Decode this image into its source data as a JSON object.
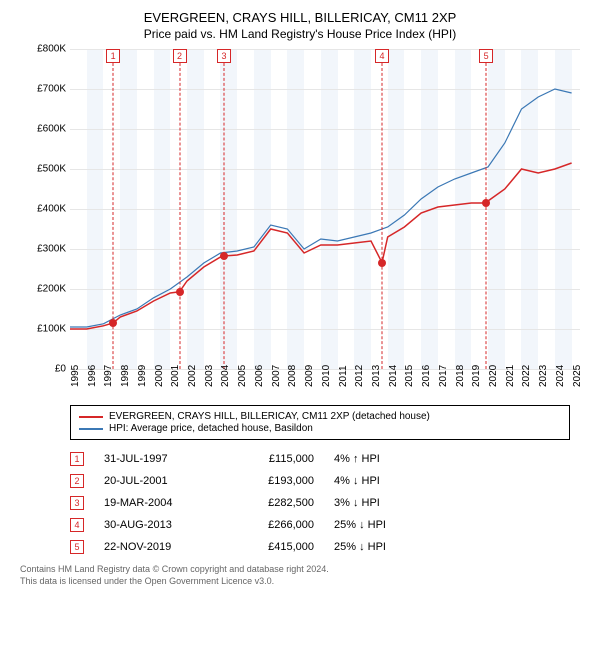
{
  "title": "EVERGREEN, CRAYS HILL, BILLERICAY, CM11 2XP",
  "subtitle": "Price paid vs. HM Land Registry's House Price Index (HPI)",
  "chart": {
    "type": "line",
    "xlim": [
      1995,
      2025.5
    ],
    "ylim": [
      0,
      800000
    ],
    "ytick_step": 100000,
    "ytick_prefix": "£",
    "ytick_suffix": "K",
    "ytick_divisor": 1000,
    "xticks": [
      1995,
      1996,
      1997,
      1998,
      1999,
      2000,
      2001,
      2002,
      2003,
      2004,
      2005,
      2006,
      2007,
      2008,
      2009,
      2010,
      2011,
      2012,
      2013,
      2014,
      2015,
      2016,
      2017,
      2018,
      2019,
      2020,
      2021,
      2022,
      2023,
      2024,
      2025
    ],
    "shaded_x_every": 2,
    "shaded_color": "#f2f6fb",
    "grid_color": "#e6e6e6",
    "background_color": "#ffffff",
    "axis_fontsize": 10,
    "title_fontsize": 13,
    "subtitle_fontsize": 12,
    "series": [
      {
        "name": "EVERGREEN, CRAYS HILL, BILLERICAY, CM11 2XP (detached house)",
        "color": "#d62728",
        "line_width": 1.5,
        "x": [
          1995,
          1996,
          1997,
          1997.58,
          1998,
          1999,
          2000,
          2001,
          2001.55,
          2002,
          2003,
          2004,
          2004.21,
          2005,
          2006,
          2007,
          2008,
          2009,
          2010,
          2011,
          2012,
          2013,
          2013.66,
          2014,
          2015,
          2016,
          2017,
          2018,
          2019,
          2019.89,
          2020,
          2021,
          2022,
          2023,
          2024,
          2025
        ],
        "y": [
          100000,
          100000,
          108000,
          115000,
          130000,
          145000,
          170000,
          190000,
          193000,
          220000,
          255000,
          280000,
          282500,
          285000,
          295000,
          350000,
          340000,
          290000,
          310000,
          310000,
          315000,
          320000,
          266000,
          330000,
          355000,
          390000,
          405000,
          410000,
          415000,
          415000,
          420000,
          450000,
          500000,
          490000,
          500000,
          515000
        ]
      },
      {
        "name": "HPI: Average price, detached house, Basildon",
        "color": "#3b78b5",
        "line_width": 1.2,
        "x": [
          1995,
          1996,
          1997,
          1998,
          1999,
          2000,
          2001,
          2002,
          2003,
          2004,
          2005,
          2006,
          2007,
          2008,
          2009,
          2010,
          2011,
          2012,
          2013,
          2014,
          2015,
          2016,
          2017,
          2018,
          2019,
          2020,
          2021,
          2022,
          2023,
          2024,
          2025
        ],
        "y": [
          105000,
          105000,
          113000,
          135000,
          150000,
          178000,
          200000,
          230000,
          265000,
          290000,
          295000,
          305000,
          360000,
          350000,
          300000,
          325000,
          320000,
          330000,
          340000,
          355000,
          385000,
          425000,
          455000,
          475000,
          490000,
          505000,
          565000,
          650000,
          680000,
          700000,
          690000
        ]
      }
    ],
    "markers": [
      {
        "n": 1,
        "x": 1997.58,
        "y": 115000,
        "color": "#d62728"
      },
      {
        "n": 2,
        "x": 2001.55,
        "y": 193000,
        "color": "#d62728"
      },
      {
        "n": 3,
        "x": 2004.21,
        "y": 282500,
        "color": "#d62728"
      },
      {
        "n": 4,
        "x": 2013.66,
        "y": 266000,
        "color": "#d62728"
      },
      {
        "n": 5,
        "x": 2019.89,
        "y": 415000,
        "color": "#d62728"
      }
    ],
    "marker_box_color": "#d62728",
    "marker_dash_color": "#d62728",
    "sale_dot_color": "#d62728",
    "sale_dot_size": 8
  },
  "legend": {
    "items": [
      {
        "label": "EVERGREEN, CRAYS HILL, BILLERICAY, CM11 2XP (detached house)",
        "color": "#d62728"
      },
      {
        "label": "HPI: Average price, detached house, Basildon",
        "color": "#3b78b5"
      }
    ]
  },
  "sales_table": {
    "rows": [
      {
        "n": "1",
        "date": "31-JUL-1997",
        "price": "£115,000",
        "delta": "4% ↑ HPI",
        "color": "#d62728"
      },
      {
        "n": "2",
        "date": "20-JUL-2001",
        "price": "£193,000",
        "delta": "4% ↓ HPI",
        "color": "#d62728"
      },
      {
        "n": "3",
        "date": "19-MAR-2004",
        "price": "£282,500",
        "delta": "3% ↓ HPI",
        "color": "#d62728"
      },
      {
        "n": "4",
        "date": "30-AUG-2013",
        "price": "£266,000",
        "delta": "25% ↓ HPI",
        "color": "#d62728"
      },
      {
        "n": "5",
        "date": "22-NOV-2019",
        "price": "£415,000",
        "delta": "25% ↓ HPI",
        "color": "#d62728"
      }
    ]
  },
  "footer_line1": "Contains HM Land Registry data © Crown copyright and database right 2024.",
  "footer_line2": "This data is licensed under the Open Government Licence v3.0."
}
